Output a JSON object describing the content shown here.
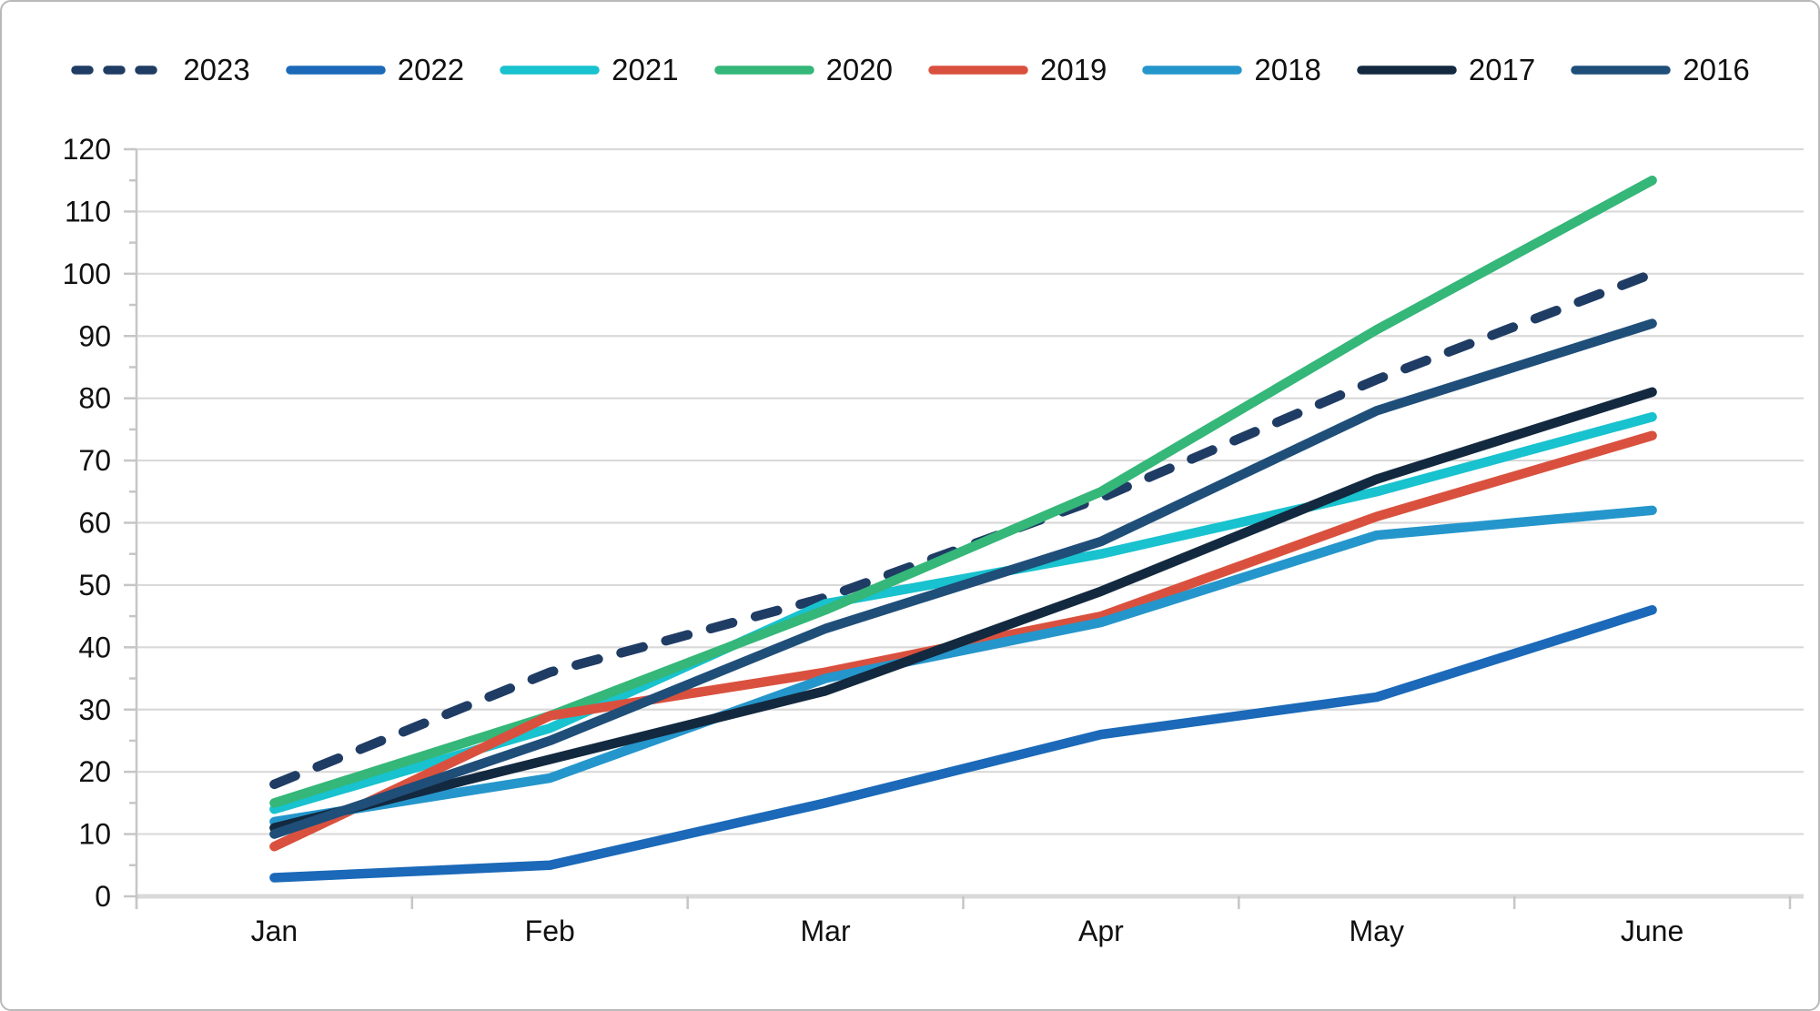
{
  "chart_data": {
    "type": "line",
    "title": "",
    "xlabel": "",
    "ylabel": "",
    "categories": [
      "Jan",
      "Feb",
      "Mar",
      "Apr",
      "May",
      "June"
    ],
    "ylim": [
      0,
      120
    ],
    "yticks": [
      0,
      10,
      20,
      30,
      40,
      50,
      60,
      70,
      80,
      90,
      100,
      110,
      120
    ],
    "grid": true,
    "legend_position": "top",
    "gridline_color": "#d9d9d9",
    "axis_color": "#c6c6c6",
    "series": [
      {
        "name": "2023",
        "color": "#1f3c64",
        "dashed": true,
        "values": [
          18,
          36,
          48,
          64,
          83,
          100
        ]
      },
      {
        "name": "2022",
        "color": "#1b69b8",
        "dashed": false,
        "values": [
          3,
          5,
          15,
          26,
          32,
          46
        ]
      },
      {
        "name": "2021",
        "color": "#18c2ce",
        "dashed": false,
        "values": [
          14,
          27,
          47,
          55,
          65,
          77
        ]
      },
      {
        "name": "2020",
        "color": "#34b778",
        "dashed": false,
        "values": [
          15,
          29,
          46,
          65,
          91,
          115
        ]
      },
      {
        "name": "2019",
        "color": "#d9513e",
        "dashed": false,
        "values": [
          8,
          29,
          36,
          45,
          61,
          74
        ]
      },
      {
        "name": "2018",
        "color": "#2596cb",
        "dashed": false,
        "values": [
          12,
          19,
          35,
          44,
          58,
          62
        ]
      },
      {
        "name": "2017",
        "color": "#13293f",
        "dashed": false,
        "values": [
          11,
          22,
          33,
          49,
          67,
          81
        ]
      },
      {
        "name": "2016",
        "color": "#1f4e79",
        "dashed": false,
        "values": [
          10,
          25,
          43,
          57,
          78,
          92
        ]
      }
    ]
  }
}
